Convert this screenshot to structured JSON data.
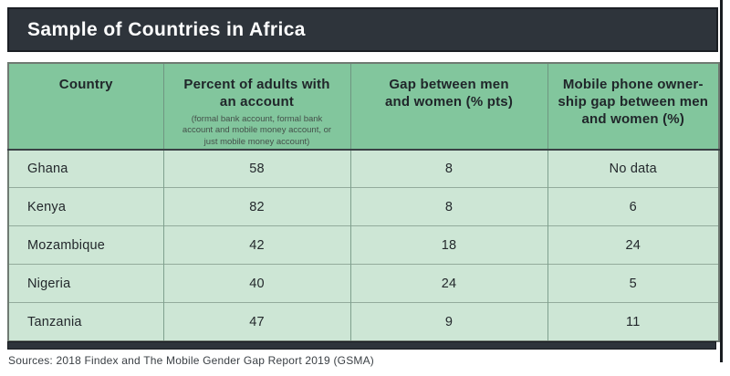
{
  "page": {
    "title": "Sample of Countries in Africa",
    "sources_note": "Sources: 2018 Findex and The Mobile Gender Gap Report 2019 (GSMA)"
  },
  "table": {
    "columns": [
      {
        "label": "Country",
        "sub": ""
      },
      {
        "label": "Percent of adults with\nan account",
        "sub": "(formal bank account, formal bank\naccount and mobile money account, or\njust mobile money account)"
      },
      {
        "label": "Gap between men\nand women (% pts)",
        "sub": ""
      },
      {
        "label": "Mobile phone owner-\nship gap between men\nand women (%)",
        "sub": ""
      }
    ],
    "rows": [
      {
        "country": "Ghana",
        "account": "58",
        "gap": "8",
        "mobile_gap": "No data"
      },
      {
        "country": "Kenya",
        "account": "82",
        "gap": "8",
        "mobile_gap": "6"
      },
      {
        "country": "Mozambique",
        "account": "42",
        "gap": "18",
        "mobile_gap": "24"
      },
      {
        "country": "Nigeria",
        "account": "40",
        "gap": "24",
        "mobile_gap": "5"
      },
      {
        "country": "Tanzania",
        "account": "47",
        "gap": "9",
        "mobile_gap": "11"
      }
    ]
  },
  "colors": {
    "header_fill": "#82c69d",
    "row_fill": "#cde6d5",
    "dark_bar": "#2e343b",
    "outer_border": "#6f7a72",
    "inner_divider": "#7fa08e"
  },
  "chart_data": {
    "type": "table",
    "title": "Sample of Countries in Africa",
    "columns": [
      "Country",
      "Percent of adults with an account (formal bank account, formal bank account and mobile money account, or just mobile money account)",
      "Gap between men and women (% pts)",
      "Mobile phone ownership gap between men and women (%)"
    ],
    "rows": [
      [
        "Ghana",
        58,
        8,
        "No data"
      ],
      [
        "Kenya",
        82,
        8,
        6
      ],
      [
        "Mozambique",
        42,
        18,
        24
      ],
      [
        "Nigeria",
        40,
        24,
        5
      ],
      [
        "Tanzania",
        47,
        9,
        11
      ]
    ],
    "source": "2018 Findex and The Mobile Gender Gap Report 2019 (GSMA)"
  }
}
